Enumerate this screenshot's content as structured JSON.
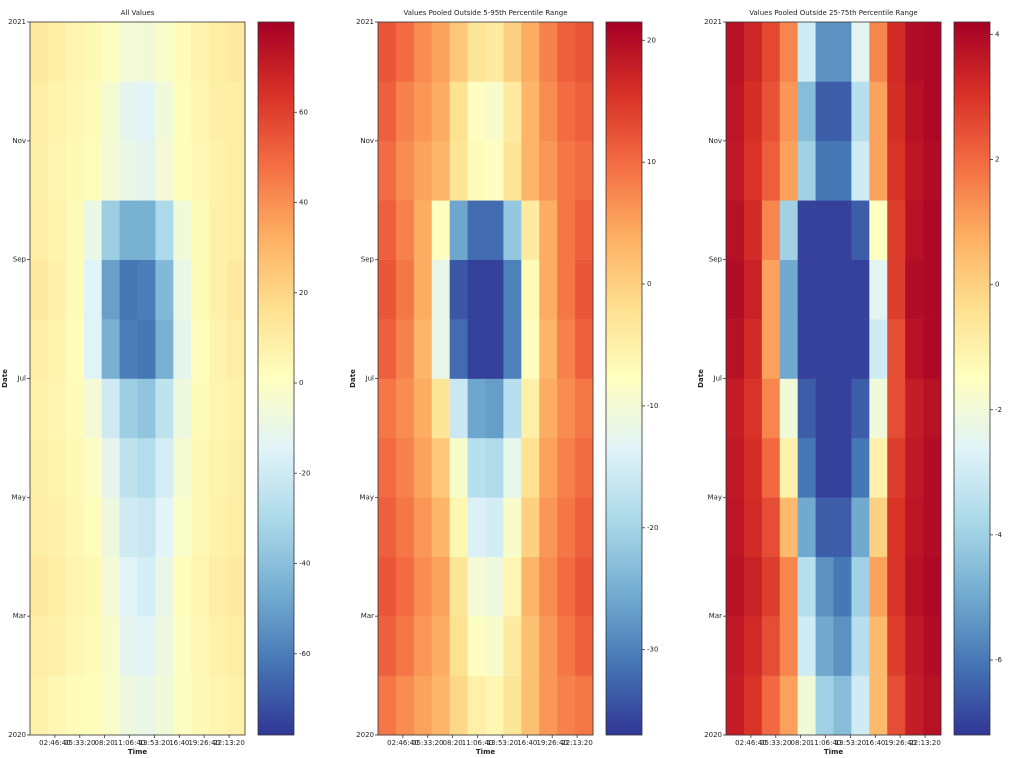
{
  "chart_data": [
    {
      "type": "heatmap",
      "title": "All Values",
      "xlabel": "Time",
      "ylabel": "Date",
      "colormap": [
        "#313695",
        "#4575b4",
        "#74add1",
        "#abd9e9",
        "#e0f3f8",
        "#ffffbf",
        "#fee090",
        "#fdae61",
        "#f46d43",
        "#d73027",
        "#a50026"
      ],
      "clim": [
        -78,
        80
      ],
      "cticks": [
        -60,
        -40,
        -20,
        0,
        20,
        40,
        60
      ],
      "xlim": [
        0,
        86400
      ],
      "xbins": [
        0,
        7200,
        14400,
        21600,
        28800,
        36000,
        43200,
        50400,
        57600,
        64800,
        72000,
        79200,
        86400
      ],
      "xticks": [
        {
          "value": 10000,
          "label": "02:46:40"
        },
        {
          "value": 20000,
          "label": "05:33:20"
        },
        {
          "value": 30000,
          "label": "08:20"
        },
        {
          "value": 40000,
          "label": "11:06:40"
        },
        {
          "value": 50000,
          "label": "13:53:20"
        },
        {
          "value": 60000,
          "label": "16:40"
        },
        {
          "value": 70000,
          "label": "19:26:40"
        },
        {
          "value": 80000,
          "label": "22:13:20"
        }
      ],
      "ylim": [
        "2020-01",
        "2021-01"
      ],
      "yticks": [
        {
          "value": "2020-01",
          "label": "2020"
        },
        {
          "value": "2020-03",
          "label": "Mar"
        },
        {
          "value": "2020-05",
          "label": "May"
        },
        {
          "value": "2020-07",
          "label": "Jul"
        },
        {
          "value": "2020-09",
          "label": "Sep"
        },
        {
          "value": "2020-11",
          "label": "Nov"
        },
        {
          "value": "2021-01",
          "label": "2021"
        }
      ],
      "y": [
        "2020-01",
        "2020-02",
        "2020-03",
        "2020-04",
        "2020-05",
        "2020-06",
        "2020-07",
        "2020-08",
        "2020-09",
        "2020-10",
        "2020-11",
        "2020-12"
      ],
      "values": [
        [
          8,
          5,
          3,
          2,
          -2,
          -8,
          -10,
          -6,
          0,
          4,
          6,
          8
        ],
        [
          10,
          8,
          5,
          3,
          -3,
          -12,
          -14,
          -8,
          0,
          5,
          8,
          10
        ],
        [
          12,
          10,
          6,
          4,
          -5,
          -15,
          -18,
          -10,
          2,
          6,
          10,
          12
        ],
        [
          10,
          8,
          5,
          2,
          -8,
          -20,
          -22,
          -14,
          -2,
          5,
          8,
          10
        ],
        [
          9,
          7,
          4,
          0,
          -12,
          -25,
          -28,
          -18,
          -4,
          4,
          7,
          9
        ],
        [
          8,
          6,
          3,
          -5,
          -20,
          -35,
          -38,
          -25,
          -8,
          3,
          6,
          8
        ],
        [
          10,
          7,
          2,
          -15,
          -45,
          -60,
          -62,
          -45,
          -12,
          2,
          7,
          10
        ],
        [
          12,
          8,
          3,
          -15,
          -50,
          -62,
          -60,
          -42,
          -10,
          3,
          8,
          12
        ],
        [
          10,
          7,
          3,
          -10,
          -35,
          -45,
          -45,
          -30,
          -6,
          3,
          8,
          10
        ],
        [
          9,
          6,
          4,
          2,
          -5,
          -10,
          -12,
          -5,
          2,
          5,
          8,
          9
        ],
        [
          10,
          7,
          5,
          3,
          -4,
          -12,
          -14,
          -6,
          2,
          6,
          9,
          10
        ],
        [
          12,
          9,
          6,
          4,
          0,
          -5,
          -6,
          -2,
          3,
          7,
          10,
          12
        ]
      ]
    },
    {
      "type": "heatmap",
      "title": "Values Pooled Outside 5-95th Percentile Range",
      "xlabel": "Time",
      "ylabel": "Date",
      "colormap": [
        "#313695",
        "#4575b4",
        "#74add1",
        "#abd9e9",
        "#e0f3f8",
        "#ffffbf",
        "#fee090",
        "#fdae61",
        "#f46d43",
        "#d73027",
        "#a50026"
      ],
      "clim": [
        -37,
        21.5
      ],
      "cticks": [
        -30,
        -20,
        -10,
        0,
        10,
        20
      ],
      "xlim": [
        0,
        86400
      ],
      "xbins": [
        0,
        7200,
        14400,
        21600,
        28800,
        36000,
        43200,
        50400,
        57600,
        64800,
        72000,
        79200,
        86400
      ],
      "xticks": [
        {
          "value": 10000,
          "label": "02:46:40"
        },
        {
          "value": 20000,
          "label": "05:33:20"
        },
        {
          "value": 30000,
          "label": "08:20"
        },
        {
          "value": 40000,
          "label": "11:06:40"
        },
        {
          "value": 50000,
          "label": "13:53:20"
        },
        {
          "value": 60000,
          "label": "16:40"
        },
        {
          "value": 70000,
          "label": "19:26:40"
        },
        {
          "value": 80000,
          "label": "22:13:20"
        }
      ],
      "ylim": [
        "2020-01",
        "2021-01"
      ],
      "yticks": [
        {
          "value": "2020-01",
          "label": "2020"
        },
        {
          "value": "2020-03",
          "label": "Mar"
        },
        {
          "value": "2020-05",
          "label": "May"
        },
        {
          "value": "2020-07",
          "label": "Jul"
        },
        {
          "value": "2020-09",
          "label": "Sep"
        },
        {
          "value": "2020-11",
          "label": "Nov"
        },
        {
          "value": "2021-01",
          "label": "2021"
        }
      ],
      "y": [
        "2020-01",
        "2020-02",
        "2020-03",
        "2020-04",
        "2020-05",
        "2020-06",
        "2020-07",
        "2020-08",
        "2020-09",
        "2020-10",
        "2020-11",
        "2020-12"
      ],
      "values": [
        [
          9,
          7,
          5,
          3,
          -1,
          -5,
          -6,
          -3,
          2,
          6,
          8,
          9
        ],
        [
          11,
          9,
          6,
          4,
          -2,
          -8,
          -9,
          -4,
          2,
          6,
          9,
          11
        ],
        [
          12,
          10,
          7,
          5,
          -3,
          -10,
          -11,
          -6,
          3,
          7,
          10,
          12
        ],
        [
          11,
          9,
          6,
          3,
          -6,
          -14,
          -15,
          -9,
          0,
          6,
          9,
          11
        ],
        [
          10,
          8,
          5,
          1,
          -9,
          -18,
          -19,
          -12,
          -2,
          5,
          8,
          10
        ],
        [
          9,
          7,
          4,
          -3,
          -16,
          -26,
          -27,
          -18,
          -5,
          4,
          7,
          9
        ],
        [
          11,
          8,
          3,
          -12,
          -32,
          -36,
          -36,
          -30,
          -8,
          3,
          8,
          11
        ],
        [
          12,
          9,
          4,
          -12,
          -34,
          -36,
          -36,
          -30,
          -7,
          4,
          9,
          12
        ],
        [
          11,
          8,
          4,
          -8,
          -26,
          -32,
          -32,
          -22,
          -4,
          4,
          9,
          11
        ],
        [
          10,
          7,
          5,
          3,
          -3,
          -7,
          -8,
          -3,
          3,
          6,
          9,
          10
        ],
        [
          11,
          8,
          6,
          4,
          -2,
          -8,
          -9,
          -4,
          3,
          7,
          10,
          11
        ],
        [
          12,
          10,
          7,
          5,
          1,
          -3,
          -4,
          0,
          4,
          8,
          11,
          12
        ]
      ]
    },
    {
      "type": "heatmap",
      "title": "Values Pooled Outside 25-75th Percentile Range",
      "xlabel": "Time",
      "ylabel": "Date",
      "colormap": [
        "#313695",
        "#4575b4",
        "#74add1",
        "#abd9e9",
        "#e0f3f8",
        "#ffffbf",
        "#fee090",
        "#fdae61",
        "#f46d43",
        "#d73027",
        "#a50026"
      ],
      "clim": [
        -7.2,
        4.2
      ],
      "cticks": [
        -6,
        -4,
        -2,
        0,
        2,
        4
      ],
      "xlim": [
        0,
        86400
      ],
      "xbins": [
        0,
        7200,
        14400,
        21600,
        28800,
        36000,
        43200,
        50400,
        57600,
        64800,
        72000,
        79200,
        86400
      ],
      "xticks": [
        {
          "value": 10000,
          "label": "02:46:40"
        },
        {
          "value": 20000,
          "label": "05:33:20"
        },
        {
          "value": 30000,
          "label": "08:20"
        },
        {
          "value": 40000,
          "label": "11:06:40"
        },
        {
          "value": 50000,
          "label": "13:53:20"
        },
        {
          "value": 60000,
          "label": "16:40"
        },
        {
          "value": 70000,
          "label": "19:26:40"
        },
        {
          "value": 80000,
          "label": "22:13:20"
        }
      ],
      "ylim": [
        "2020-01",
        "2021-01"
      ],
      "yticks": [
        {
          "value": "2020-01",
          "label": "2020"
        },
        {
          "value": "2020-03",
          "label": "Mar"
        },
        {
          "value": "2020-05",
          "label": "May"
        },
        {
          "value": "2020-07",
          "label": "Jul"
        },
        {
          "value": "2020-09",
          "label": "Sep"
        },
        {
          "value": "2020-11",
          "label": "Nov"
        },
        {
          "value": "2021-01",
          "label": "2021"
        }
      ],
      "y": [
        "2020-01",
        "2020-02",
        "2020-03",
        "2020-04",
        "2020-05",
        "2020-06",
        "2020-07",
        "2020-08",
        "2020-09",
        "2020-10",
        "2020-11",
        "2020-12"
      ],
      "values": [
        [
          3.5,
          3,
          2,
          1,
          -2,
          -4,
          -4.5,
          -3,
          0.5,
          2.5,
          3.5,
          3.8
        ],
        [
          3.6,
          3.2,
          2.5,
          1.5,
          -3,
          -5,
          -5.5,
          -3.5,
          0.5,
          2.8,
          3.6,
          3.9
        ],
        [
          3.8,
          3.4,
          2.8,
          1.5,
          -3.5,
          -5.5,
          -6,
          -4,
          1,
          3,
          3.8,
          4
        ],
        [
          3.7,
          3.2,
          2.5,
          0.5,
          -5,
          -6.5,
          -6.5,
          -5,
          0,
          3,
          3.7,
          3.9
        ],
        [
          3.6,
          3.1,
          2,
          -1,
          -6,
          -7,
          -7,
          -6,
          -1,
          2.8,
          3.6,
          3.9
        ],
        [
          3.5,
          3,
          1.5,
          -2,
          -6.5,
          -7,
          -7,
          -6.5,
          -2,
          2.5,
          3.5,
          3.8
        ],
        [
          3.8,
          3.2,
          1,
          -5,
          -7,
          -7,
          -7,
          -7,
          -3,
          2.5,
          3.8,
          4
        ],
        [
          3.9,
          3.4,
          1,
          -5,
          -7,
          -7,
          -7,
          -7,
          -2.5,
          2.8,
          3.9,
          4
        ],
        [
          3.8,
          3.2,
          1.5,
          -4,
          -7,
          -7,
          -7,
          -6.5,
          -1.5,
          2.8,
          3.8,
          4
        ],
        [
          3.6,
          3,
          2.2,
          1,
          -4,
          -6,
          -6,
          -3,
          1,
          3,
          3.7,
          3.9
        ],
        [
          3.7,
          3.1,
          2.4,
          1.2,
          -4.5,
          -6.5,
          -6.5,
          -3.5,
          1,
          3.1,
          3.8,
          4
        ],
        [
          3.8,
          3.3,
          2.6,
          1.5,
          -3,
          -5.5,
          -5.5,
          -2.5,
          1.5,
          3.2,
          3.9,
          4
        ]
      ]
    }
  ]
}
